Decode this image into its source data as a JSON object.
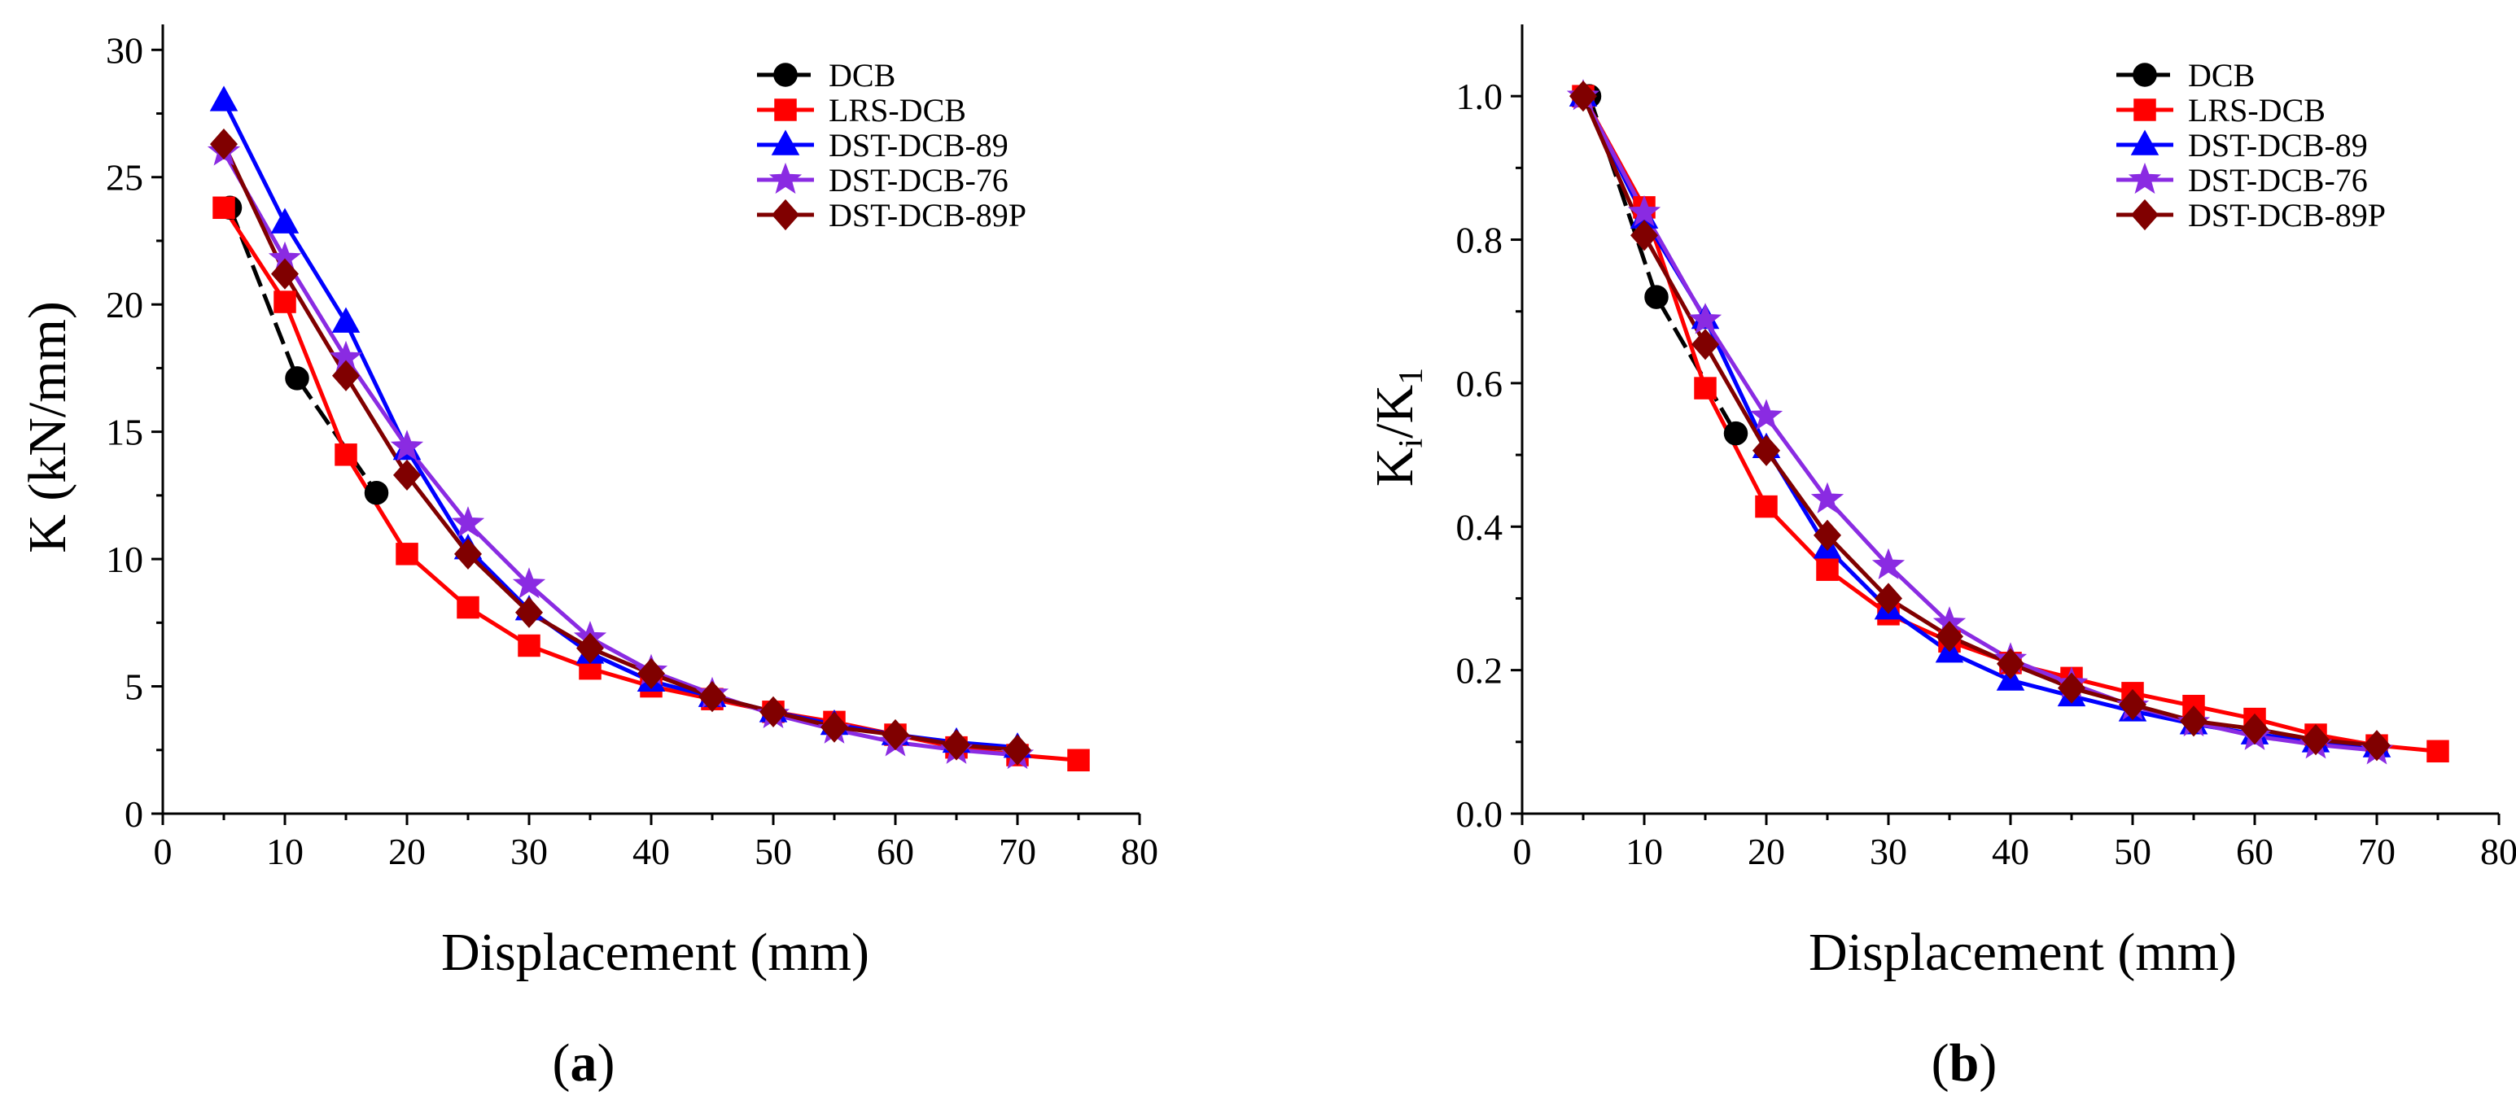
{
  "captions": [
    "a",
    "b"
  ],
  "chart_data": [
    {
      "type": "line",
      "panel": "a",
      "title": "",
      "xlabel": "Displacement (mm)",
      "ylabel": "K (kN/mm)",
      "xlim": [
        0,
        80
      ],
      "ylim": [
        0,
        31
      ],
      "xticks": [
        0,
        10,
        20,
        30,
        40,
        50,
        60,
        70,
        80
      ],
      "yticks": [
        0,
        5,
        10,
        15,
        20,
        25,
        30
      ],
      "legend_position": "top-right",
      "series": [
        {
          "name": "DCB",
          "color": "#000000",
          "marker": "circle",
          "dashed": true,
          "x": [
            5.5,
            11,
            17.5
          ],
          "y": [
            23.8,
            17.1,
            12.6
          ]
        },
        {
          "name": "LRS-DCB",
          "color": "#ff0000",
          "marker": "square",
          "x": [
            5,
            10,
            15,
            20,
            25,
            30,
            35,
            40,
            45,
            50,
            55,
            60,
            65,
            70,
            75
          ],
          "y": [
            23.8,
            20.1,
            14.1,
            10.2,
            8.1,
            6.6,
            5.7,
            5.0,
            4.5,
            4.0,
            3.6,
            3.1,
            2.6,
            2.3,
            2.1
          ]
        },
        {
          "name": "DST-DCB-89",
          "color": "#0000ff",
          "marker": "triangle",
          "x": [
            5,
            10,
            15,
            20,
            25,
            30,
            35,
            40,
            45,
            50,
            55,
            60,
            65,
            70
          ],
          "y": [
            28.0,
            23.2,
            19.3,
            14.3,
            10.4,
            8.0,
            6.3,
            5.2,
            4.6,
            4.0,
            3.5,
            3.1,
            2.8,
            2.6
          ]
        },
        {
          "name": "DST-DCB-76",
          "color": "#8a2be2",
          "marker": "star",
          "x": [
            5,
            10,
            15,
            20,
            25,
            30,
            35,
            40,
            45,
            50,
            55,
            60,
            65,
            70
          ],
          "y": [
            26.0,
            21.8,
            17.9,
            14.4,
            11.4,
            9.0,
            6.9,
            5.6,
            4.7,
            3.9,
            3.3,
            2.8,
            2.5,
            2.3
          ]
        },
        {
          "name": "DST-DCB-89P",
          "color": "#800000",
          "marker": "diamond",
          "x": [
            5,
            10,
            15,
            20,
            25,
            30,
            35,
            40,
            45,
            50,
            55,
            60,
            65,
            70
          ],
          "y": [
            26.3,
            21.2,
            17.2,
            13.3,
            10.2,
            7.9,
            6.5,
            5.5,
            4.6,
            4.0,
            3.4,
            3.1,
            2.7,
            2.5
          ]
        }
      ]
    },
    {
      "type": "line",
      "panel": "b",
      "title": "",
      "xlabel": "Displacement (mm)",
      "ylabel": "Ki/K1",
      "ylabel_main": "K",
      "ylabel_sub1": "i",
      "ylabel_sep": "/K",
      "ylabel_sub2": "1",
      "xlim": [
        0,
        80
      ],
      "ylim": [
        0,
        1.1
      ],
      "xticks": [
        0,
        10,
        20,
        30,
        40,
        50,
        60,
        70,
        80
      ],
      "yticks": [
        0.0,
        0.2,
        0.4,
        0.6,
        0.8,
        1.0
      ],
      "ytick_labels": [
        "0.0",
        "0.2",
        "0.4",
        "0.6",
        "0.8",
        "1.0"
      ],
      "legend_position": "top-right",
      "series": [
        {
          "name": "DCB",
          "color": "#000000",
          "marker": "circle",
          "dashed": true,
          "x": [
            5.5,
            11,
            17.5
          ],
          "y": [
            1.0,
            0.72,
            0.53
          ]
        },
        {
          "name": "LRS-DCB",
          "color": "#ff0000",
          "marker": "square",
          "x": [
            5,
            10,
            15,
            20,
            25,
            30,
            35,
            40,
            45,
            50,
            55,
            60,
            65,
            70,
            75
          ],
          "y": [
            1.0,
            0.845,
            0.593,
            0.428,
            0.34,
            0.278,
            0.24,
            0.21,
            0.189,
            0.168,
            0.15,
            0.132,
            0.11,
            0.095,
            0.087
          ]
        },
        {
          "name": "DST-DCB-89",
          "color": "#0000ff",
          "marker": "triangle",
          "x": [
            5,
            10,
            15,
            20,
            25,
            30,
            35,
            40,
            45,
            50,
            55,
            60,
            65,
            70
          ],
          "y": [
            1.0,
            0.83,
            0.69,
            0.51,
            0.37,
            0.285,
            0.225,
            0.186,
            0.164,
            0.143,
            0.125,
            0.111,
            0.1,
            0.093
          ]
        },
        {
          "name": "DST-DCB-76",
          "color": "#8a2be2",
          "marker": "star",
          "x": [
            5,
            10,
            15,
            20,
            25,
            30,
            35,
            40,
            45,
            50,
            55,
            60,
            65,
            70
          ],
          "y": [
            1.0,
            0.838,
            0.688,
            0.554,
            0.438,
            0.346,
            0.265,
            0.215,
            0.181,
            0.15,
            0.127,
            0.108,
            0.096,
            0.088
          ]
        },
        {
          "name": "DST-DCB-89P",
          "color": "#800000",
          "marker": "diamond",
          "x": [
            5,
            10,
            15,
            20,
            25,
            30,
            35,
            40,
            45,
            50,
            55,
            60,
            65,
            70
          ],
          "y": [
            1.0,
            0.806,
            0.654,
            0.506,
            0.388,
            0.3,
            0.247,
            0.209,
            0.175,
            0.152,
            0.129,
            0.118,
            0.103,
            0.095
          ]
        }
      ]
    }
  ]
}
